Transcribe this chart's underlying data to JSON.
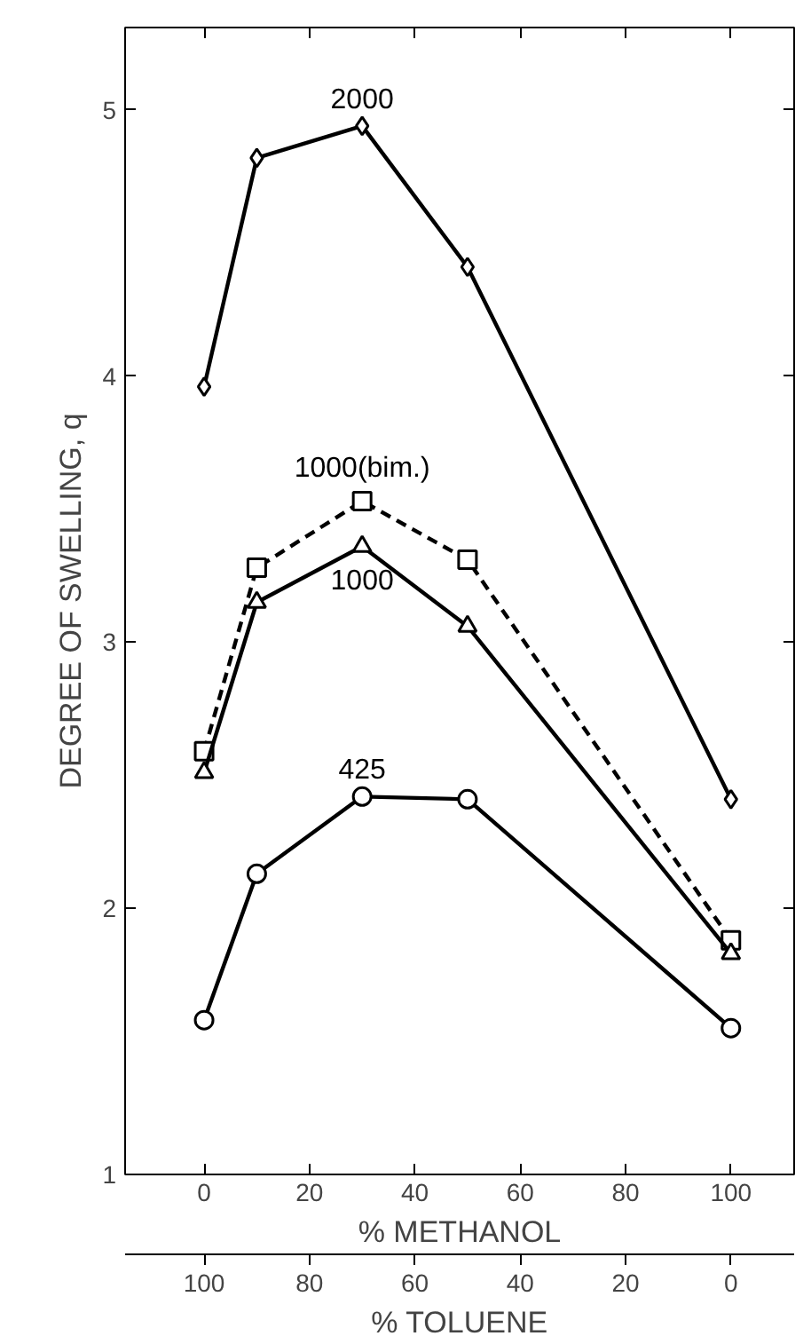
{
  "chart_data": {
    "type": "line",
    "xlabel": "% METHANOL",
    "ylabel": "DEGREE OF SWELLING, q",
    "x2label": "% TOLUENE",
    "x": [
      0,
      10,
      30,
      50,
      100
    ],
    "xlim": [
      -15,
      112
    ],
    "xticks": [
      0,
      20,
      40,
      60,
      80,
      100
    ],
    "x2lim": [
      115,
      -12
    ],
    "x2ticks": [
      100,
      80,
      60,
      40,
      20,
      0
    ],
    "ylim": [
      1,
      5.31
    ],
    "yticks": [
      1,
      2,
      3,
      4,
      5
    ],
    "grid": false,
    "series": [
      {
        "name": "2000",
        "color": "#000000",
        "marker": "diamond",
        "line_style": "solid",
        "values": [
          3.96,
          4.82,
          4.94,
          4.41,
          2.41
        ]
      },
      {
        "name": "1000(bim.)",
        "color": "#000000",
        "marker": "square",
        "line_style": "dashed",
        "values": [
          2.59,
          3.28,
          3.53,
          3.31,
          1.88
        ]
      },
      {
        "name": "1000",
        "color": "#000000",
        "marker": "triangle",
        "line_style": "solid",
        "values": [
          2.51,
          3.15,
          3.36,
          3.06,
          1.83
        ]
      },
      {
        "name": "425",
        "color": "#000000",
        "marker": "circle",
        "line_style": "solid",
        "values": [
          1.58,
          2.13,
          2.42,
          2.41,
          1.55
        ]
      }
    ]
  }
}
